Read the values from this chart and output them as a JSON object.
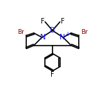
{
  "background_color": "#ffffff",
  "bond_color": "#000000",
  "atom_colors": {
    "Br": "#8B0000",
    "F": "#000000",
    "B": "#0000FF",
    "N": "#0000FF",
    "C": "#000000"
  },
  "font_size_atoms": 7,
  "font_size_small": 6,
  "line_width": 1.2,
  "figsize": [
    1.52,
    1.52
  ],
  "dpi": 100
}
